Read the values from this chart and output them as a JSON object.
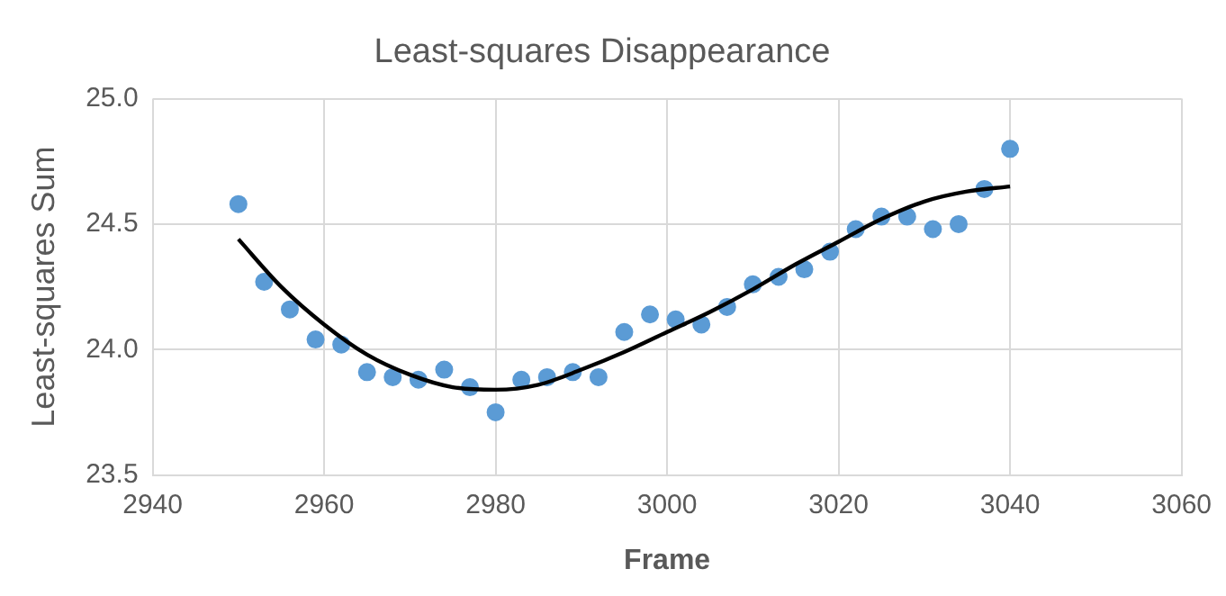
{
  "chart_data": {
    "type": "scatter",
    "title": "Least-squares Disappearance",
    "xlabel": "Frame",
    "ylabel": "Least-squares Sum",
    "xlim": [
      2940,
      3060
    ],
    "xticks": [
      2940,
      2960,
      2980,
      3000,
      3020,
      3040,
      3060
    ],
    "ylim": [
      23.5,
      25.0
    ],
    "yticks": [
      {
        "value": 23.5,
        "label": "23.5"
      },
      {
        "value": 24.0,
        "label": "24.0"
      },
      {
        "value": 24.5,
        "label": "24.5"
      },
      {
        "value": 25.0,
        "label": "25.0"
      }
    ],
    "grid": true,
    "legend": false,
    "marker": "circle",
    "series": [
      {
        "type": "scatter",
        "color": "#5b9bd5",
        "x": [
          2950,
          2953,
          2956,
          2959,
          2962,
          2965,
          2968,
          2971,
          2974,
          2977,
          2980,
          2983,
          2986,
          2989,
          2992,
          2995,
          2998,
          3001,
          3004,
          3007,
          3010,
          3013,
          3016,
          3019,
          3022,
          3025,
          3028,
          3031,
          3034,
          3037,
          3040
        ],
        "values": [
          24.58,
          24.27,
          24.16,
          24.04,
          24.02,
          23.91,
          23.89,
          23.88,
          23.92,
          23.85,
          23.75,
          23.88,
          23.89,
          23.91,
          23.89,
          24.07,
          24.14,
          24.12,
          24.1,
          24.17,
          24.26,
          24.29,
          24.32,
          24.39,
          24.48,
          24.53,
          24.53,
          24.48,
          24.5,
          24.64,
          24.8
        ]
      },
      {
        "type": "line",
        "color": "#000000",
        "marker": "none",
        "line_style": "solid",
        "x": [
          2950,
          2955,
          2960,
          2965,
          2970,
          2975,
          2980,
          2985,
          2990,
          2995,
          3000,
          3005,
          3010,
          3015,
          3020,
          3025,
          3030,
          3035,
          3040
        ],
        "values": [
          24.44,
          24.25,
          24.1,
          23.98,
          23.9,
          23.85,
          23.84,
          23.86,
          23.92,
          23.99,
          24.07,
          24.15,
          24.24,
          24.34,
          24.43,
          24.52,
          24.59,
          24.63,
          24.65
        ]
      }
    ]
  }
}
